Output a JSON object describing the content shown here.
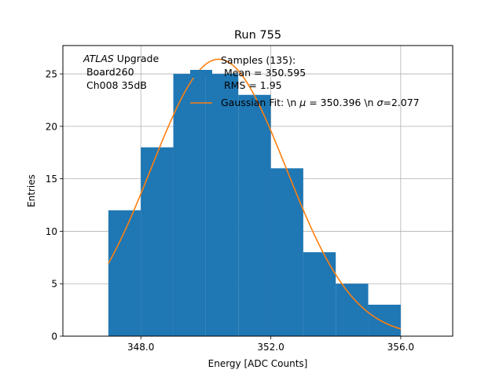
{
  "chart_data": {
    "type": "bar",
    "title": "Run 755",
    "xlabel": "Energy [ADC Counts]",
    "ylabel": "Entries",
    "xlim": [
      345.6,
      357.6
    ],
    "ylim": [
      0,
      27.7
    ],
    "xticks": [
      348,
      352,
      356
    ],
    "xtick_labels": [
      "348.0",
      "352.0",
      "356.0"
    ],
    "yticks": [
      0,
      5,
      10,
      15,
      20,
      25
    ],
    "ytick_labels": [
      "0",
      "5",
      "10",
      "15",
      "20",
      "25"
    ],
    "grid": true,
    "bins": [
      {
        "x0": 347,
        "x1": 348,
        "count": 12
      },
      {
        "x0": 348,
        "x1": 349,
        "count": 18
      },
      {
        "x0": 349,
        "x1": 350,
        "count": 25
      },
      {
        "x0": 350,
        "x1": 351,
        "count": 25
      },
      {
        "x0": 351,
        "x1": 352,
        "count": 23
      },
      {
        "x0": 352,
        "x1": 353,
        "count": 16
      },
      {
        "x0": 353,
        "x1": 354,
        "count": 8
      },
      {
        "x0": 354,
        "x1": 355,
        "count": 5
      },
      {
        "x0": 355,
        "x1": 356,
        "count": 3
      }
    ],
    "fit": {
      "amplitude": 26.4,
      "mean": 350.396,
      "sigma": 2.077,
      "x_range": [
        347,
        356
      ]
    },
    "colors": {
      "bars": "#1f77b4",
      "fit": "#ff7f0e",
      "grid": "#b0b0b0"
    },
    "annotation": {
      "atlas": "ATLAS",
      "atlas_suffix": " Upgrade",
      "line2": " Board260",
      "line3": " Ch008 35dB"
    },
    "legend": {
      "placement": "top-right",
      "samples_line1": "Samples (135):",
      "samples_line2": " Mean = 350.595",
      "samples_line3": " RMS = 1.95",
      "fit_label_a": "Gaussian Fit: \\n ",
      "fit_label_mu": "μ",
      "fit_label_b": " = 350.396 \\n ",
      "fit_label_sigma": "σ",
      "fit_label_c": "=2.077"
    }
  }
}
